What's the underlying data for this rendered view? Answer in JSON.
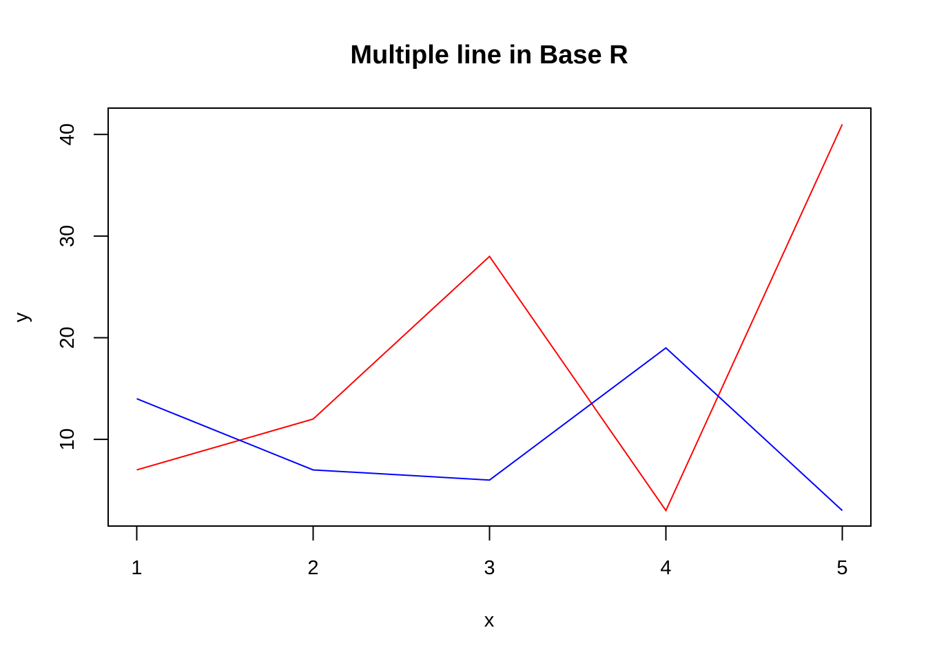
{
  "chart_data": {
    "type": "line",
    "title": "Multiple line in Base R",
    "xlabel": "x",
    "ylabel": "y",
    "x": [
      1,
      2,
      3,
      4,
      5
    ],
    "xticks": [
      "1",
      "2",
      "3",
      "4",
      "5"
    ],
    "yticks": [
      "10",
      "20",
      "30",
      "40"
    ],
    "ylim": [
      3,
      41
    ],
    "xlim": [
      1,
      5
    ],
    "grid": false,
    "legend": "none",
    "series": [
      {
        "color": "#ff0000",
        "values": [
          7,
          12,
          28,
          3,
          41
        ]
      },
      {
        "color": "#0000ff",
        "values": [
          14,
          7,
          6,
          19,
          3
        ]
      }
    ]
  }
}
